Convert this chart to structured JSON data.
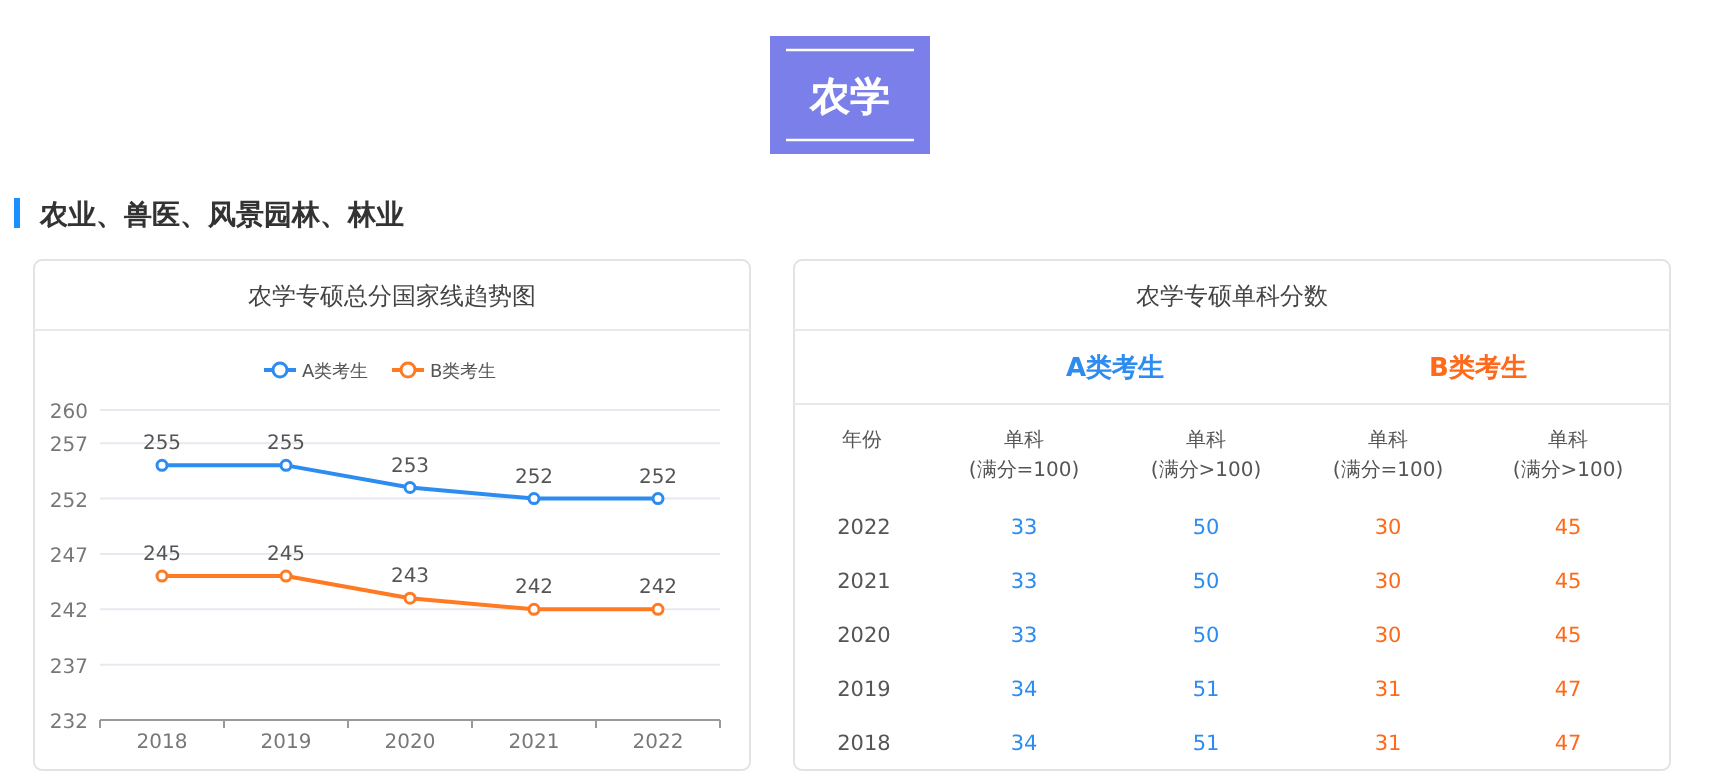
{
  "chart_data": [
    {
      "type": "other",
      "title": "农学",
      "subtitle": "农业、兽医、风景园林、林业"
    },
    {
      "type": "line",
      "title": "农学专硕总分国家线趋势图",
      "categories": [
        "2018",
        "2019",
        "2020",
        "2021",
        "2022"
      ],
      "series": [
        {
          "name": "A类考生",
          "color": "#2d8cf0",
          "values": [
            255,
            255,
            253,
            252,
            252
          ]
        },
        {
          "name": "B类考生",
          "color": "#ff7a22",
          "values": [
            245,
            245,
            243,
            242,
            242
          ]
        }
      ],
      "ylim": [
        232,
        260
      ],
      "yticks": [
        232,
        237,
        242,
        247,
        252,
        257,
        260
      ],
      "grid": "y",
      "legend": "top",
      "marker": "circle",
      "data_labels": true
    },
    {
      "type": "heatmap",
      "title": "农学专硕单科分数",
      "legend_title": "年份",
      "annotations": [
        "A类考生",
        "B类考生"
      ],
      "categories": [
        "单科(满分=100)",
        "单科(满分>100)",
        "单科(满分=100)",
        "单科(满分>100)"
      ],
      "colors": [
        "#2d8cf0",
        "#2d8cf0",
        "#ff6a1a",
        "#ff6a1a"
      ],
      "y_categories": [
        "2022",
        "2021",
        "2020",
        "2019",
        "2018"
      ],
      "cells": [
        [
          33,
          50,
          30,
          45
        ],
        [
          33,
          50,
          30,
          45
        ],
        [
          33,
          50,
          30,
          45
        ],
        [
          34,
          51,
          31,
          47
        ],
        [
          34,
          51,
          31,
          47
        ]
      ],
      "data_labels": true
    }
  ]
}
